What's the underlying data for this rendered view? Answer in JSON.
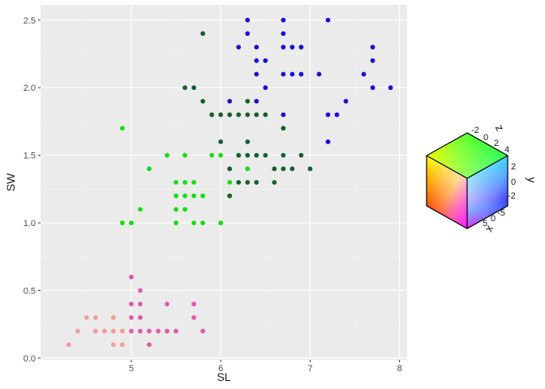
{
  "chart_data": {
    "type": "scatter",
    "xlabel": "SL",
    "ylabel": "SW",
    "xlim": [
      4.3,
      8.0
    ],
    "ylim": [
      0.0,
      2.6
    ],
    "xticks": [
      5,
      6,
      7,
      8
    ],
    "yticks": [
      0.0,
      0.5,
      1.0,
      1.5,
      2.0,
      2.5
    ],
    "grid": true,
    "legend": {
      "position": "right",
      "type": "rgb-cube",
      "axis_labels": {
        "x": "x",
        "y": "y",
        "z": "z"
      },
      "x_ticks": [
        "5",
        "0",
        "-5"
      ],
      "y_ticks": [
        "2",
        "0",
        "-2"
      ],
      "z_ticks": [
        "-2",
        "0",
        "2",
        "4"
      ]
    },
    "colors": {
      "pink": "#f59a9a",
      "magenta": "#e05aa8",
      "green": "#14dd14",
      "dark_green": "#15602c",
      "blue": "#1a10d8"
    },
    "points": [
      {
        "x": 4.3,
        "y": 0.1,
        "c": "pink"
      },
      {
        "x": 4.4,
        "y": 0.2,
        "c": "pink"
      },
      {
        "x": 4.5,
        "y": 0.3,
        "c": "pink"
      },
      {
        "x": 4.6,
        "y": 0.3,
        "c": "pink"
      },
      {
        "x": 4.6,
        "y": 0.2,
        "c": "pink"
      },
      {
        "x": 4.7,
        "y": 0.2,
        "c": "pink"
      },
      {
        "x": 4.8,
        "y": 0.2,
        "c": "pink"
      },
      {
        "x": 4.8,
        "y": 0.1,
        "c": "pink"
      },
      {
        "x": 4.8,
        "y": 0.3,
        "c": "pink"
      },
      {
        "x": 4.9,
        "y": 0.1,
        "c": "pink"
      },
      {
        "x": 4.9,
        "y": 0.2,
        "c": "pink"
      },
      {
        "x": 5.0,
        "y": 0.2,
        "c": "magenta"
      },
      {
        "x": 5.0,
        "y": 0.3,
        "c": "magenta"
      },
      {
        "x": 5.0,
        "y": 0.4,
        "c": "magenta"
      },
      {
        "x": 5.0,
        "y": 0.6,
        "c": "magenta"
      },
      {
        "x": 5.1,
        "y": 0.2,
        "c": "magenta"
      },
      {
        "x": 5.1,
        "y": 0.3,
        "c": "magenta"
      },
      {
        "x": 5.1,
        "y": 0.4,
        "c": "magenta"
      },
      {
        "x": 5.1,
        "y": 0.5,
        "c": "magenta"
      },
      {
        "x": 5.2,
        "y": 0.1,
        "c": "magenta"
      },
      {
        "x": 5.2,
        "y": 0.2,
        "c": "magenta"
      },
      {
        "x": 5.3,
        "y": 0.2,
        "c": "magenta"
      },
      {
        "x": 5.4,
        "y": 0.2,
        "c": "magenta"
      },
      {
        "x": 5.4,
        "y": 0.4,
        "c": "magenta"
      },
      {
        "x": 5.5,
        "y": 0.2,
        "c": "magenta"
      },
      {
        "x": 5.7,
        "y": 0.3,
        "c": "magenta"
      },
      {
        "x": 5.7,
        "y": 0.4,
        "c": "magenta"
      },
      {
        "x": 5.8,
        "y": 0.2,
        "c": "magenta"
      },
      {
        "x": 4.9,
        "y": 1.0,
        "c": "green"
      },
      {
        "x": 4.9,
        "y": 1.7,
        "c": "green"
      },
      {
        "x": 5.0,
        "y": 1.0,
        "c": "green"
      },
      {
        "x": 5.1,
        "y": 1.1,
        "c": "green"
      },
      {
        "x": 5.2,
        "y": 1.4,
        "c": "green"
      },
      {
        "x": 5.4,
        "y": 1.5,
        "c": "green"
      },
      {
        "x": 5.5,
        "y": 1.0,
        "c": "green"
      },
      {
        "x": 5.5,
        "y": 1.1,
        "c": "green"
      },
      {
        "x": 5.5,
        "y": 1.2,
        "c": "green"
      },
      {
        "x": 5.5,
        "y": 1.3,
        "c": "green"
      },
      {
        "x": 5.6,
        "y": 1.1,
        "c": "green"
      },
      {
        "x": 5.6,
        "y": 1.2,
        "c": "green"
      },
      {
        "x": 5.6,
        "y": 1.3,
        "c": "green"
      },
      {
        "x": 5.6,
        "y": 1.5,
        "c": "green"
      },
      {
        "x": 5.7,
        "y": 1.0,
        "c": "green"
      },
      {
        "x": 5.7,
        "y": 1.2,
        "c": "green"
      },
      {
        "x": 5.7,
        "y": 1.3,
        "c": "green"
      },
      {
        "x": 5.8,
        "y": 1.0,
        "c": "green"
      },
      {
        "x": 5.8,
        "y": 1.2,
        "c": "green"
      },
      {
        "x": 5.9,
        "y": 1.5,
        "c": "green"
      },
      {
        "x": 6.0,
        "y": 1.0,
        "c": "green"
      },
      {
        "x": 6.0,
        "y": 1.5,
        "c": "green"
      },
      {
        "x": 6.1,
        "y": 1.2,
        "c": "green"
      },
      {
        "x": 6.1,
        "y": 1.3,
        "c": "green"
      },
      {
        "x": 6.2,
        "y": 1.5,
        "c": "green"
      },
      {
        "x": 6.3,
        "y": 1.4,
        "c": "green"
      },
      {
        "x": 6.7,
        "y": 1.7,
        "c": "green"
      },
      {
        "x": 5.6,
        "y": 2.0,
        "c": "dark_green"
      },
      {
        "x": 5.7,
        "y": 2.0,
        "c": "dark_green"
      },
      {
        "x": 5.8,
        "y": 1.9,
        "c": "dark_green"
      },
      {
        "x": 5.8,
        "y": 2.4,
        "c": "dark_green"
      },
      {
        "x": 5.9,
        "y": 1.8,
        "c": "dark_green"
      },
      {
        "x": 6.0,
        "y": 1.6,
        "c": "dark_green"
      },
      {
        "x": 6.0,
        "y": 1.8,
        "c": "dark_green"
      },
      {
        "x": 6.1,
        "y": 1.2,
        "c": "dark_green"
      },
      {
        "x": 6.1,
        "y": 1.4,
        "c": "dark_green"
      },
      {
        "x": 6.1,
        "y": 1.8,
        "c": "dark_green"
      },
      {
        "x": 6.2,
        "y": 1.3,
        "c": "dark_green"
      },
      {
        "x": 6.2,
        "y": 1.5,
        "c": "dark_green"
      },
      {
        "x": 6.2,
        "y": 1.8,
        "c": "dark_green"
      },
      {
        "x": 6.3,
        "y": 1.3,
        "c": "dark_green"
      },
      {
        "x": 6.3,
        "y": 1.5,
        "c": "dark_green"
      },
      {
        "x": 6.3,
        "y": 1.6,
        "c": "dark_green"
      },
      {
        "x": 6.3,
        "y": 1.8,
        "c": "dark_green"
      },
      {
        "x": 6.3,
        "y": 1.9,
        "c": "dark_green"
      },
      {
        "x": 6.4,
        "y": 1.3,
        "c": "dark_green"
      },
      {
        "x": 6.4,
        "y": 1.5,
        "c": "dark_green"
      },
      {
        "x": 6.4,
        "y": 1.8,
        "c": "dark_green"
      },
      {
        "x": 6.5,
        "y": 1.5,
        "c": "dark_green"
      },
      {
        "x": 6.5,
        "y": 1.8,
        "c": "dark_green"
      },
      {
        "x": 6.6,
        "y": 1.3,
        "c": "dark_green"
      },
      {
        "x": 6.6,
        "y": 1.4,
        "c": "dark_green"
      },
      {
        "x": 6.7,
        "y": 1.4,
        "c": "dark_green"
      },
      {
        "x": 6.7,
        "y": 1.5,
        "c": "dark_green"
      },
      {
        "x": 6.7,
        "y": 1.7,
        "c": "dark_green"
      },
      {
        "x": 6.8,
        "y": 1.4,
        "c": "dark_green"
      },
      {
        "x": 6.9,
        "y": 1.5,
        "c": "dark_green"
      },
      {
        "x": 7.0,
        "y": 1.4,
        "c": "dark_green"
      },
      {
        "x": 6.1,
        "y": 1.9,
        "c": "blue"
      },
      {
        "x": 6.2,
        "y": 2.3,
        "c": "blue"
      },
      {
        "x": 6.3,
        "y": 2.4,
        "c": "blue"
      },
      {
        "x": 6.3,
        "y": 2.5,
        "c": "blue"
      },
      {
        "x": 6.4,
        "y": 1.9,
        "c": "blue"
      },
      {
        "x": 6.4,
        "y": 2.1,
        "c": "blue"
      },
      {
        "x": 6.4,
        "y": 2.2,
        "c": "blue"
      },
      {
        "x": 6.4,
        "y": 2.3,
        "c": "blue"
      },
      {
        "x": 6.5,
        "y": 2.0,
        "c": "blue"
      },
      {
        "x": 6.5,
        "y": 2.2,
        "c": "blue"
      },
      {
        "x": 6.7,
        "y": 1.8,
        "c": "blue"
      },
      {
        "x": 6.7,
        "y": 2.1,
        "c": "blue"
      },
      {
        "x": 6.7,
        "y": 2.3,
        "c": "blue"
      },
      {
        "x": 6.7,
        "y": 2.4,
        "c": "blue"
      },
      {
        "x": 6.7,
        "y": 2.5,
        "c": "blue"
      },
      {
        "x": 6.8,
        "y": 2.1,
        "c": "blue"
      },
      {
        "x": 6.8,
        "y": 2.3,
        "c": "blue"
      },
      {
        "x": 6.9,
        "y": 2.1,
        "c": "blue"
      },
      {
        "x": 6.9,
        "y": 2.3,
        "c": "blue"
      },
      {
        "x": 7.1,
        "y": 2.1,
        "c": "blue"
      },
      {
        "x": 7.2,
        "y": 1.6,
        "c": "blue"
      },
      {
        "x": 7.2,
        "y": 1.8,
        "c": "blue"
      },
      {
        "x": 7.2,
        "y": 2.5,
        "c": "blue"
      },
      {
        "x": 7.3,
        "y": 1.8,
        "c": "blue"
      },
      {
        "x": 7.4,
        "y": 1.9,
        "c": "blue"
      },
      {
        "x": 7.6,
        "y": 2.1,
        "c": "blue"
      },
      {
        "x": 7.7,
        "y": 2.0,
        "c": "blue"
      },
      {
        "x": 7.7,
        "y": 2.2,
        "c": "blue"
      },
      {
        "x": 7.7,
        "y": 2.3,
        "c": "blue"
      },
      {
        "x": 7.9,
        "y": 2.0,
        "c": "blue"
      }
    ]
  }
}
